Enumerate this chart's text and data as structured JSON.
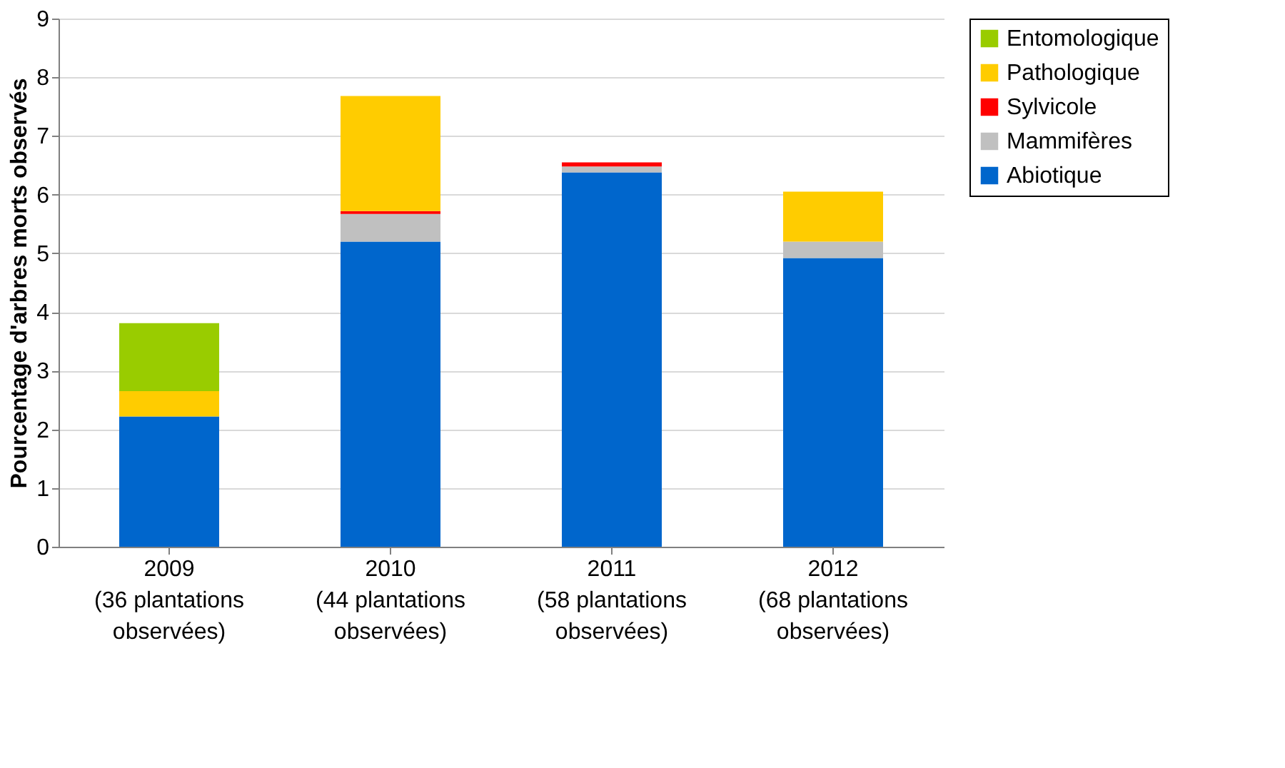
{
  "chart_data": {
    "type": "bar",
    "stacked": true,
    "ylabel": "Pourcentage d'arbres morts observés",
    "categories": [
      "2009\n(36 plantations\nobservées)",
      "2010\n(44 plantations\nobservées)",
      "2011\n(58 plantations\nobservées)",
      "2012\n(68 plantations\nobservées)"
    ],
    "series": [
      {
        "name": "Abiotique",
        "color": "#0066cc",
        "values": [
          2.22,
          5.2,
          6.38,
          4.92
        ]
      },
      {
        "name": "Mammifères",
        "color": "#c0c0c0",
        "values": [
          null,
          0.47,
          0.1,
          0.28
        ]
      },
      {
        "name": "Sylvicole",
        "color": "#ff0000",
        "values": [
          null,
          0.05,
          0.07,
          null
        ]
      },
      {
        "name": "Pathologique",
        "color": "#ffcc00",
        "values": [
          0.43,
          1.96,
          null,
          0.85
        ]
      },
      {
        "name": "Entomologique",
        "color": "#99cc00",
        "values": [
          1.16,
          null,
          null,
          null
        ]
      }
    ],
    "ylim": [
      0,
      9
    ],
    "yticks": [
      0,
      1,
      2,
      3,
      4,
      5,
      6,
      7,
      8,
      9
    ],
    "grid": "y",
    "legend": "top right"
  }
}
